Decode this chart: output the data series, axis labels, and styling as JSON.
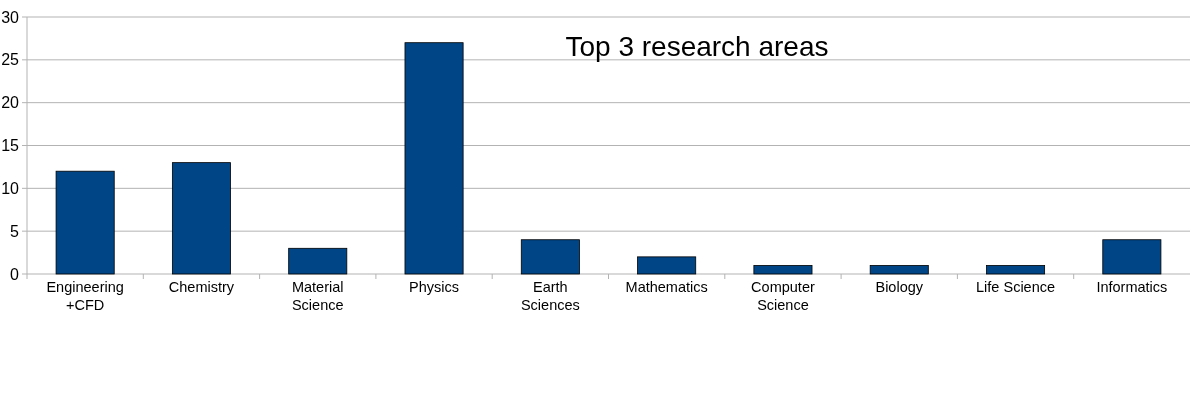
{
  "chart_data": {
    "type": "bar",
    "title": "Top 3 research areas",
    "categories": [
      "Engineering\n+CFD",
      "Chemistry",
      "Material\nScience",
      "Physics",
      "Earth\nSciences",
      "Mathematics",
      "Computer\nScience",
      "Biology",
      "Life Science",
      "Informatics"
    ],
    "values": [
      12,
      13,
      3,
      27,
      4,
      2,
      1,
      1,
      1,
      4
    ],
    "color": "#004586",
    "ylim": [
      0,
      30
    ],
    "yticks": [
      0,
      5,
      10,
      15,
      20,
      25,
      30
    ],
    "grid": "y"
  }
}
